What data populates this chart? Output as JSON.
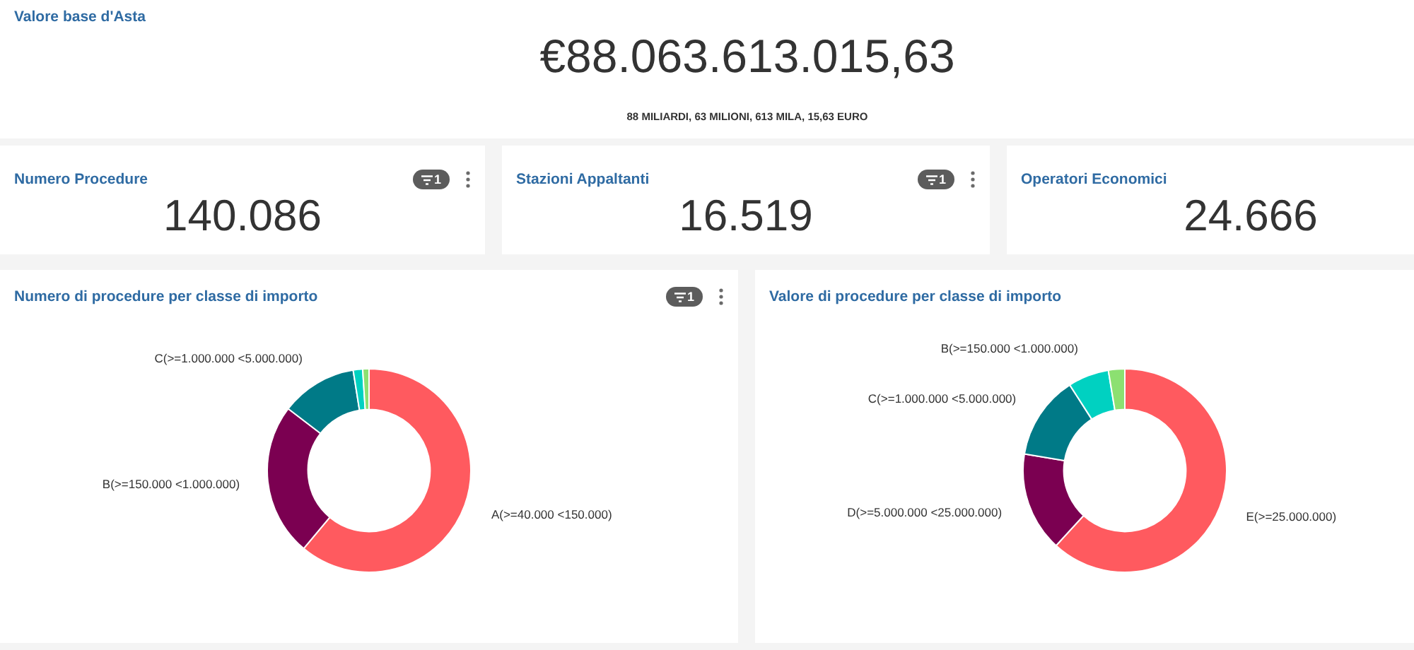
{
  "chart_data": [
    {
      "type": "other",
      "title": "Valore base d'Asta",
      "annotations": [
        "€88.063.613.015,63",
        "88 MILIARDI, 63 MILIONI, 613 MILA, 15,63 EURO"
      ]
    },
    {
      "type": "other",
      "title": "Numero Procedure",
      "annotations": [
        "140.086",
        "1"
      ]
    },
    {
      "type": "other",
      "title": "Stazioni Appaltanti",
      "annotations": [
        "16.519",
        "1"
      ]
    },
    {
      "type": "other",
      "title": "Operatori Economici",
      "annotations": [
        "24.666"
      ]
    },
    {
      "type": "donut",
      "title": "Numero di procedure per classe di importo",
      "categories": [
        "A(>=40.000 <150.000)",
        "B(>=150.000 <1.000.000)",
        "C(>=1.000.000 <5.000.000)",
        null,
        null
      ],
      "values": [
        61.1,
        24.3,
        12.1,
        1.5,
        1.0
      ],
      "colors": [
        "#ff5a5f",
        "#7b0051",
        "#007a87",
        "#00d1c1",
        "#8ce071"
      ],
      "annotations": [
        "1"
      ]
    },
    {
      "type": "donut",
      "title": "Valore di procedure per classe di importo",
      "categories": [
        "E(>=25.000.000)",
        "D(>=5.000.000 <25.000.000)",
        "C(>=1.000.000 <5.000.000)",
        "B(>=150.000 <1.000.000)",
        null
      ],
      "values": [
        61.8,
        15.8,
        13.3,
        6.5,
        2.6
      ],
      "colors": [
        "#ff5a5f",
        "#7b0051",
        "#007a87",
        "#00d1c1",
        "#8ce071"
      ]
    }
  ]
}
